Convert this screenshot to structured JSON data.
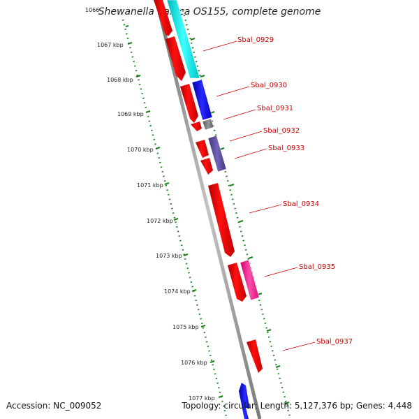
{
  "map": {
    "title": "Shewanella baltica OS155, complete genome",
    "accession": "Accession: NC_009052",
    "summary": "Topology: circular; Length: 5,127,376 bp; Genes: 4,448"
  },
  "ticks": [
    "1066",
    "1067 kbp",
    "1068 kbp",
    "1069 kbp",
    "1070 kbp",
    "1071 kbp",
    "1072 kbp",
    "1073 kbp",
    "1074 kbp",
    "1075 kbp",
    "1076 kbp",
    "1077 kbp"
  ],
  "gene_labels": [
    "Sbal_0929",
    "Sbal_0930",
    "Sbal_0931",
    "Sbal_0932",
    "Sbal_0933",
    "Sbal_0934",
    "Sbal_0935",
    "Sbal_0937"
  ],
  "colors": {
    "backbone": "#8c8c8c",
    "tick": "#1a7f1a",
    "label": "#cc0000",
    "cds": "#ff0000",
    "cyan": "#00e5e5",
    "blue": "#1010e0",
    "gray": "#707070",
    "purple": "#5a4a9a",
    "pink": "#ff1493"
  }
}
